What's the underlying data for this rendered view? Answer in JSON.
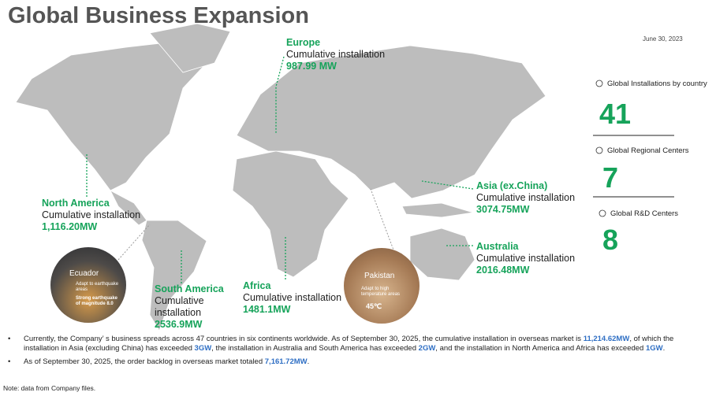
{
  "header": {
    "title": "Global Business Expansion",
    "date": "June 30, 2023"
  },
  "regions": [
    {
      "name": "Europe",
      "label": "Cumulative installation",
      "value": "987.99 MW"
    },
    {
      "name": "North America",
      "label": "Cumulative installation",
      "value": "1,116.20MW"
    },
    {
      "name": "South America",
      "label": "Cumulative installation",
      "value": "2536.9MW"
    },
    {
      "name": "Africa",
      "label": "Cumulative installation",
      "value": "1481.1MW"
    },
    {
      "name": "Asia (ex.China)",
      "label": "Cumulative installation",
      "value": "3074.75MW"
    },
    {
      "name": "Australia",
      "label": "Cumulative installation",
      "value": "2016.48MW"
    }
  ],
  "stats": [
    {
      "label": "Global Installations by country",
      "value": "41"
    },
    {
      "label": "Global Regional Centers",
      "value": "7"
    },
    {
      "label": "Global R&D Centers",
      "value": "8"
    }
  ],
  "photos": [
    {
      "place": "Ecuador",
      "lines": [
        "Adapt to earthquake areas",
        "Strong earthquake of magnitude 8.0"
      ]
    },
    {
      "place": "Pakistan",
      "lines": [
        "Adapt to high temperature areas",
        "45℃"
      ]
    }
  ],
  "notes": [
    [
      "Currently, the Company’ s business spreads across 47 countries in six continents worldwide. As of September 30, 2025, the cumulative installation in overseas market is ",
      "11,214.62MW",
      ", of which the installation in Asia (excluding China)  has exceeded ",
      "3GW",
      ", the installation in Australia and South America has exceeded ",
      "2GW",
      ",  and the installation in North America and Africa has exceeded ",
      "1GW",
      "."
    ],
    [
      "As of September 30, 2025, the order backlog in overseas market totaled ",
      "7,161.72MW",
      "."
    ]
  ],
  "footnote": "Note: data from Company files."
}
